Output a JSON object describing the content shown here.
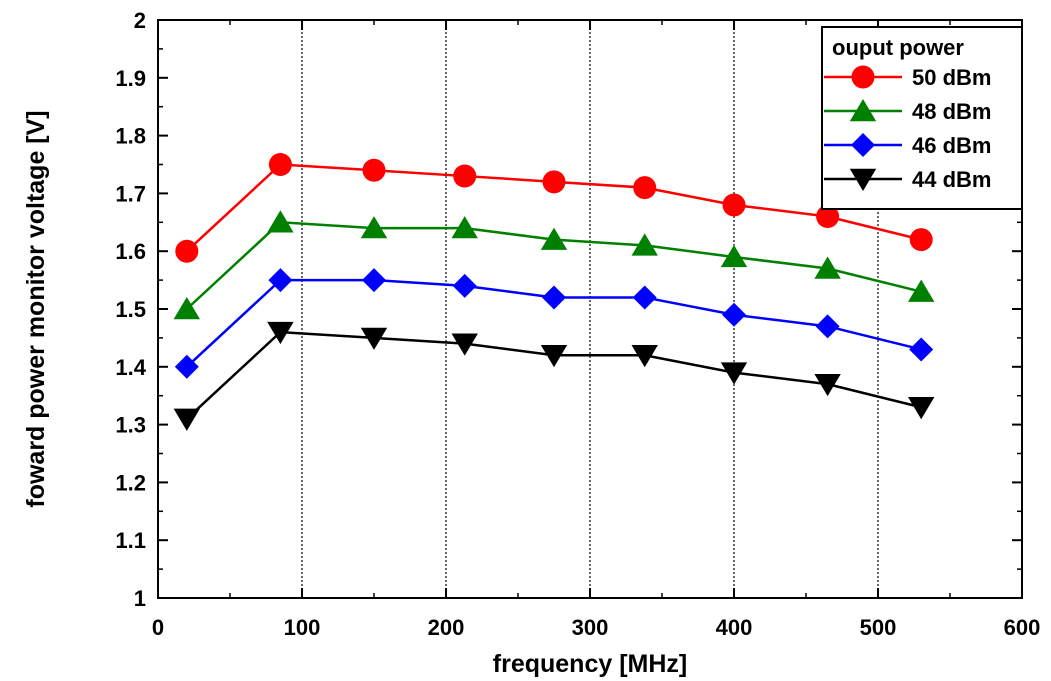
{
  "chart_data": {
    "type": "line",
    "xlabel": "frequency [MHz]",
    "ylabel": "foward power monitor voltage [V]",
    "xlim": [
      0,
      600
    ],
    "ylim": [
      1,
      2
    ],
    "xticks": [
      0,
      100,
      200,
      300,
      400,
      500,
      600
    ],
    "yticks": [
      1,
      1.1,
      1.2,
      1.3,
      1.4,
      1.5,
      1.6,
      1.7,
      1.8,
      1.9,
      2
    ],
    "grid": "dotted vertical lines at each major x tick",
    "legend": {
      "title": "ouput power",
      "position": "top-right"
    },
    "x": [
      20,
      85,
      150,
      213,
      275,
      338,
      400,
      465,
      530
    ],
    "series": [
      {
        "name": "50 dBm",
        "color": "#ff0000",
        "marker": "circle",
        "values": [
          1.6,
          1.75,
          1.74,
          1.73,
          1.72,
          1.71,
          1.68,
          1.66,
          1.62
        ]
      },
      {
        "name": "48 dBm",
        "color": "#008000",
        "marker": "triangle-up",
        "values": [
          1.5,
          1.65,
          1.64,
          1.64,
          1.62,
          1.61,
          1.59,
          1.57,
          1.53
        ]
      },
      {
        "name": "46 dBm",
        "color": "#0000ff",
        "marker": "diamond",
        "values": [
          1.4,
          1.55,
          1.55,
          1.54,
          1.52,
          1.52,
          1.49,
          1.47,
          1.43
        ]
      },
      {
        "name": "44 dBm",
        "color": "#000000",
        "marker": "triangle-down",
        "values": [
          1.31,
          1.46,
          1.45,
          1.44,
          1.42,
          1.42,
          1.39,
          1.37,
          1.33
        ]
      }
    ]
  }
}
